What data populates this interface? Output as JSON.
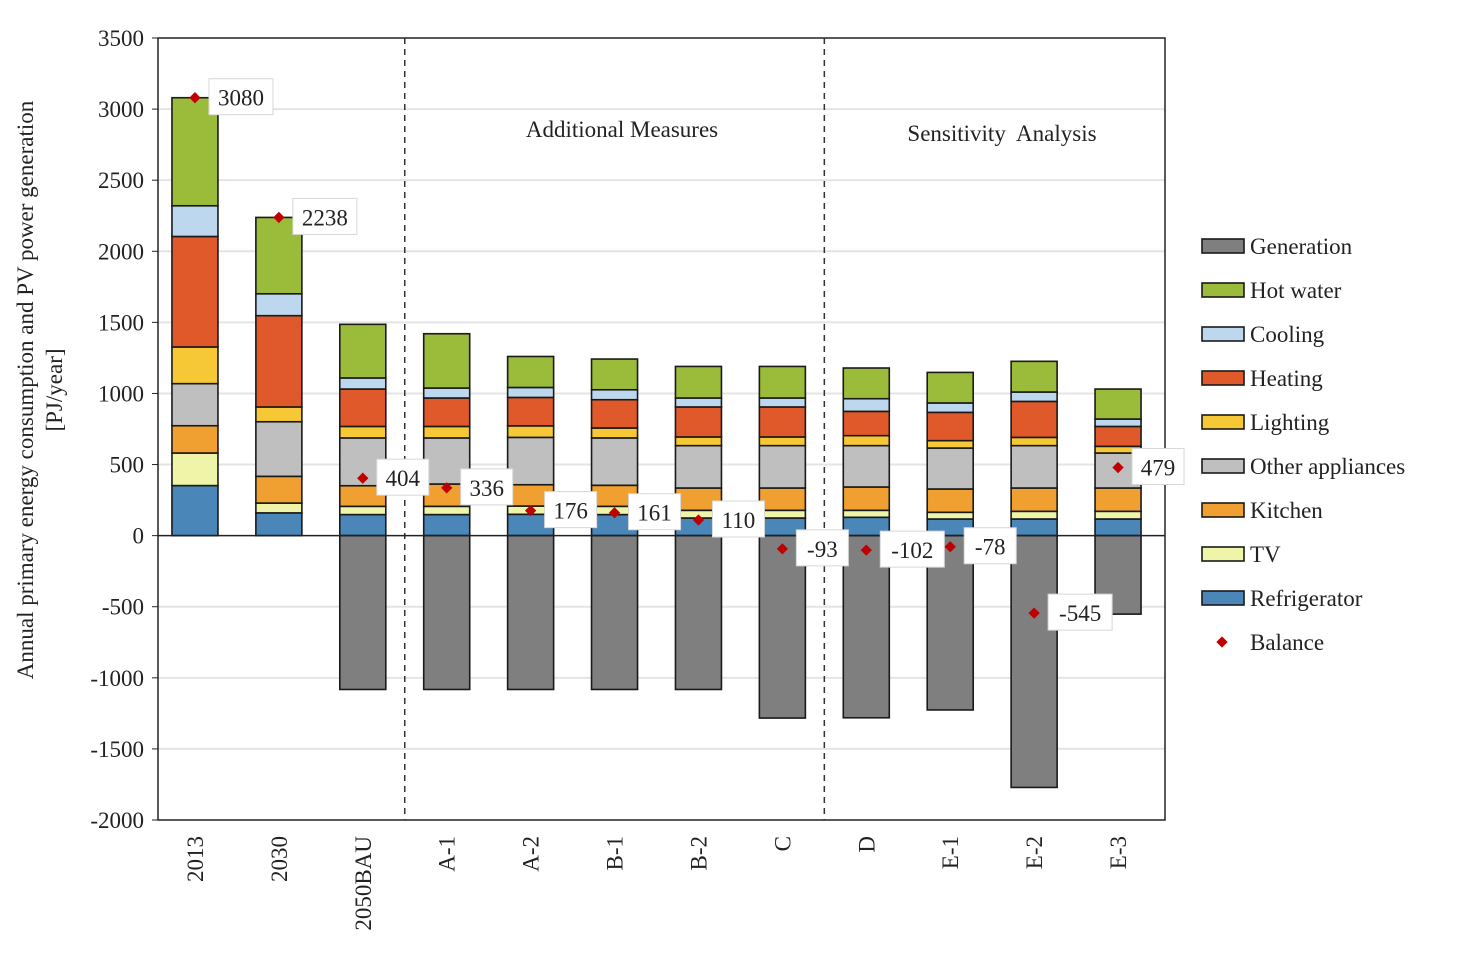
{
  "chart_data": {
    "type": "bar",
    "stacked": true,
    "ylabel": [
      "Annual primary energy consumption and PV power generation",
      "[PJ/year]"
    ],
    "ylim": [
      -2000,
      3500
    ],
    "yticks": [
      3500,
      3000,
      2500,
      2000,
      1500,
      1000,
      500,
      0,
      -500,
      -1000,
      -1500,
      -2000
    ],
    "grid": true,
    "legend_position": "right",
    "categories": [
      "2013",
      "2030",
      "2050BAU",
      "A-1",
      "A-2",
      "B-1",
      "B-2",
      "C",
      "D",
      "E-1",
      "E-2",
      "E-3"
    ],
    "section_labels": [
      {
        "text": "Additional Measures",
        "from": "A-1",
        "to": "C"
      },
      {
        "text": "Sensitivity  Analysis",
        "from": "D",
        "to": "E-3"
      }
    ],
    "series": [
      {
        "name": "Refrigerator",
        "color": "#4a86b8",
        "values": [
          352,
          160,
          148,
          148,
          150,
          148,
          124,
          124,
          129,
          117,
          117,
          117
        ]
      },
      {
        "name": "TV",
        "color": "#eef5a8",
        "values": [
          229,
          69,
          58,
          58,
          58,
          58,
          54,
          54,
          49,
          47,
          54,
          54
        ]
      },
      {
        "name": "Kitchen",
        "color": "#f0a030",
        "values": [
          192,
          188,
          145,
          157,
          150,
          148,
          157,
          157,
          164,
          164,
          164,
          164
        ]
      },
      {
        "name": "Other appliances",
        "color": "#bfbfbf",
        "values": [
          296,
          384,
          336,
          324,
          333,
          333,
          298,
          298,
          291,
          288,
          298,
          246
        ]
      },
      {
        "name": "Lighting",
        "color": "#f7c836",
        "values": [
          258,
          104,
          81,
          81,
          81,
          70,
          61,
          61,
          70,
          52,
          58,
          47
        ]
      },
      {
        "name": "Heating",
        "color": "#e0592a",
        "values": [
          777,
          642,
          263,
          200,
          200,
          199,
          211,
          211,
          171,
          199,
          253,
          140
        ]
      },
      {
        "name": "Cooling",
        "color": "#bdd7ee",
        "values": [
          216,
          154,
          78,
          70,
          70,
          70,
          63,
          63,
          89,
          66,
          66,
          52
        ]
      },
      {
        "name": "Hot water",
        "color": "#9bbb3b",
        "values": [
          760,
          537,
          377,
          382,
          218,
          216,
          222,
          222,
          216,
          215,
          216,
          211
        ]
      },
      {
        "name": "Generation",
        "color": "#7f7f7f",
        "values": [
          0,
          0,
          -1082,
          -1082,
          -1082,
          -1082,
          -1082,
          -1283,
          -1281,
          -1226,
          -1771,
          -552
        ]
      }
    ],
    "balance": {
      "name": "Balance",
      "color": "#c00000",
      "values": [
        3080,
        2238,
        404,
        336,
        176,
        161,
        110,
        -93,
        -102,
        -78,
        -545,
        479
      ]
    },
    "legend_order": [
      "Generation",
      "Hot water",
      "Cooling",
      "Heating",
      "Lighting",
      "Other appliances",
      "Kitchen",
      "TV",
      "Refrigerator",
      "Balance"
    ]
  }
}
